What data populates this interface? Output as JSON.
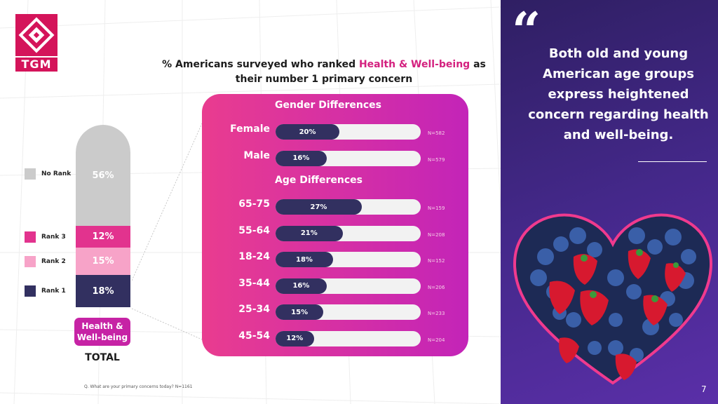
{
  "brand": {
    "logo_text": "TGM",
    "accent": "#d4145a"
  },
  "headline": {
    "prefix": "% Americans surveyed who ranked ",
    "highlight": "Health & Well-being",
    "suffix": " as their number 1 primary concern"
  },
  "chart_data": [
    {
      "type": "bar",
      "subtype": "stacked-100",
      "categories": [
        "Health & Well-being"
      ],
      "category_sublabel": "TOTAL",
      "series": [
        {
          "name": "Rank 1",
          "values": [
            18
          ],
          "label": "18%",
          "color": "#323060"
        },
        {
          "name": "Rank 2",
          "values": [
            15
          ],
          "label": "15%",
          "color": "#f7a3c8"
        },
        {
          "name": "Rank 3",
          "values": [
            12
          ],
          "label": "12%",
          "color": "#e2338e"
        },
        {
          "name": "No Rank",
          "values": [
            56
          ],
          "label": "56%",
          "color": "#cbcbcb"
        }
      ],
      "legend_position": "left"
    },
    {
      "type": "bar",
      "orientation": "horizontal",
      "sections": [
        {
          "title": "Gender Differences",
          "rows": [
            {
              "label": "Female",
              "value": 20,
              "value_label": "20%",
              "n": "N=582"
            },
            {
              "label": "Male",
              "value": 16,
              "value_label": "16%",
              "n": "N=579"
            }
          ]
        },
        {
          "title": "Age Differences",
          "rows": [
            {
              "label": "65-75",
              "value": 27,
              "value_label": "27%",
              "n": "N=159"
            },
            {
              "label": "55-64",
              "value": 21,
              "value_label": "21%",
              "n": "N=208"
            },
            {
              "label": "18-24",
              "value": 18,
              "value_label": "18%",
              "n": "N=152"
            },
            {
              "label": "35-44",
              "value": 16,
              "value_label": "16%",
              "n": "N=206"
            },
            {
              "label": "25-34",
              "value": 15,
              "value_label": "15%",
              "n": "N=233"
            },
            {
              "label": "45-54",
              "value": 12,
              "value_label": "12%",
              "n": "N=204"
            }
          ]
        }
      ],
      "xlim": [
        0,
        100
      ],
      "fill_color": "#323060",
      "track_color": "#f2f2f2"
    }
  ],
  "footnote": "Q. What are your primary concerns today? N=1161",
  "quote": {
    "text": "Both old and young American age groups express heightened concern regarding health and well-being."
  },
  "page_number": "7"
}
